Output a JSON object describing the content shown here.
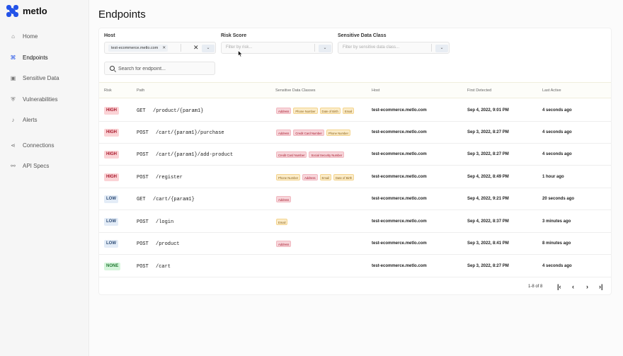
{
  "app": {
    "name": "metlo"
  },
  "sidebar": {
    "items": [
      {
        "label": "Home",
        "icon": "home-icon",
        "glyph": "⌂"
      },
      {
        "label": "Endpoints",
        "icon": "endpoints-icon",
        "glyph": "⌘",
        "active": true
      },
      {
        "label": "Sensitive Data",
        "icon": "lock-icon",
        "glyph": "▣"
      },
      {
        "label": "Vulnerabilities",
        "icon": "shield-icon",
        "glyph": "⛨"
      },
      {
        "label": "Alerts",
        "icon": "bell-icon",
        "glyph": "♪"
      },
      {
        "label": "Connections",
        "icon": "share-icon",
        "glyph": "⋖"
      },
      {
        "label": "API Specs",
        "icon": "plug-icon",
        "glyph": "⚯"
      }
    ]
  },
  "page": {
    "title": "Endpoints"
  },
  "filters": {
    "host": {
      "label": "Host",
      "chip": "test-ecommerce.metlo.com"
    },
    "risk": {
      "label": "Risk Score",
      "placeholder": "Filter by risk..."
    },
    "sensitive": {
      "label": "Sensitive Data Class",
      "placeholder": "Filter by sensitive data class..."
    }
  },
  "search": {
    "placeholder": "Search for endpoint..."
  },
  "table": {
    "columns": [
      "Risk",
      "Path",
      "Sensitive Data Classes",
      "Host",
      "First Detected",
      "Last Active"
    ],
    "rows": [
      {
        "risk": "HIGH",
        "method": "GET",
        "path": "/product/{param1}",
        "classes": [
          [
            "Address",
            "pink"
          ],
          [
            "Phone Number",
            "amber"
          ],
          [
            "Date of Birth",
            "amber"
          ],
          [
            "Email",
            "amber"
          ]
        ],
        "host": "test-ecommerce.metlo.com",
        "first": "Sep 4, 2022, 9:01 PM",
        "last": "4 seconds ago"
      },
      {
        "risk": "HIGH",
        "method": "POST",
        "path": "/cart/{param1}/purchase",
        "classes": [
          [
            "Address",
            "pink"
          ],
          [
            "Credit Card Number",
            "pink"
          ],
          [
            "Phone Number",
            "amber"
          ]
        ],
        "host": "test-ecommerce.metlo.com",
        "first": "Sep 3, 2022, 8:27 PM",
        "last": "4 seconds ago"
      },
      {
        "risk": "HIGH",
        "method": "POST",
        "path": "/cart/{param1}/add-product",
        "classes": [
          [
            "Credit Card Number",
            "pink"
          ],
          [
            "Social Security Number",
            "pink"
          ]
        ],
        "host": "test-ecommerce.metlo.com",
        "first": "Sep 3, 2022, 8:27 PM",
        "last": "4 seconds ago"
      },
      {
        "risk": "HIGH",
        "method": "POST",
        "path": "/register",
        "classes": [
          [
            "Phone Number",
            "amber"
          ],
          [
            "Address",
            "pink"
          ],
          [
            "Email",
            "amber"
          ],
          [
            "Date of Birth",
            "amber"
          ]
        ],
        "host": "test-ecommerce.metlo.com",
        "first": "Sep 4, 2022, 8:49 PM",
        "last": "1 hour ago"
      },
      {
        "risk": "LOW",
        "method": "GET",
        "path": "/cart/{param1}",
        "classes": [
          [
            "Address",
            "pink"
          ]
        ],
        "host": "test-ecommerce.metlo.com",
        "first": "Sep 4, 2022, 9:21 PM",
        "last": "20 seconds ago"
      },
      {
        "risk": "LOW",
        "method": "POST",
        "path": "/login",
        "classes": [
          [
            "Email",
            "amber"
          ]
        ],
        "host": "test-ecommerce.metlo.com",
        "first": "Sep 4, 2022, 8:37 PM",
        "last": "3 minutes ago"
      },
      {
        "risk": "LOW",
        "method": "POST",
        "path": "/product",
        "classes": [
          [
            "Address",
            "pink"
          ]
        ],
        "host": "test-ecommerce.metlo.com",
        "first": "Sep 3, 2022, 8:41 PM",
        "last": "8 minutes ago"
      },
      {
        "risk": "NONE",
        "method": "POST",
        "path": "/cart",
        "classes": [],
        "host": "test-ecommerce.metlo.com",
        "first": "Sep 3, 2022, 8:27 PM",
        "last": "4 seconds ago"
      }
    ]
  },
  "pagination": {
    "summary": "1-8 of 8",
    "first": "|‹",
    "prev": "‹",
    "next": "›",
    "last": "›|"
  },
  "colors": {
    "accent": "#2353e8",
    "high": "#fbd3d6",
    "low": "#e3ecf7",
    "none": "#d6f5dc"
  }
}
